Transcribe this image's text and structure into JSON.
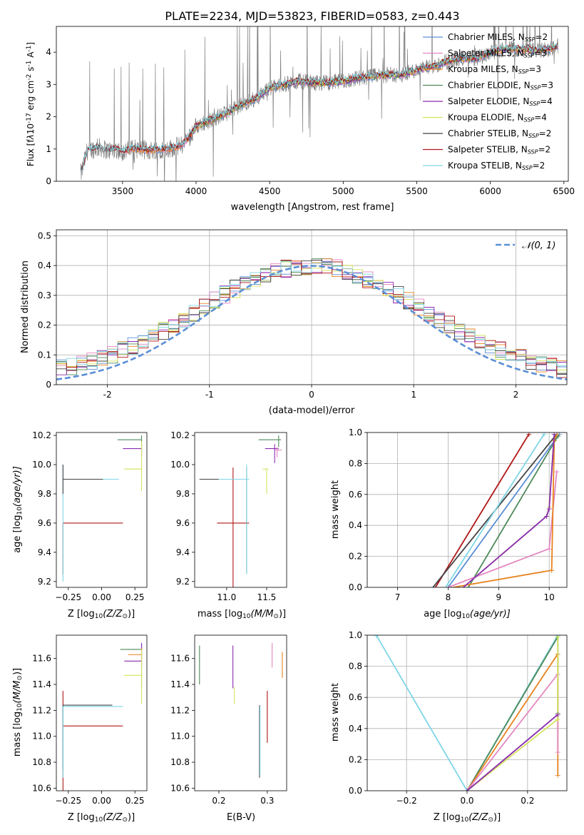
{
  "figure": {
    "suptitle": "PLATE=2234, MJD=53823, FIBERID=0583, z=0.443"
  },
  "colors": {
    "chabrier_miles": "#5b8fd6",
    "salpeter_miles": "#e487c0",
    "kroupa_miles": "#e8821e",
    "chabrier_elodie": "#4f8a5a",
    "salpeter_elodie": "#8a2ab0",
    "kroupa_elodie": "#d4e35a",
    "chabrier_stelib": "#444444",
    "salpeter_stelib": "#b01616",
    "kroupa_stelib": "#7fd6e6",
    "observed": "#808080",
    "normal_curve": "#5b8fd6"
  },
  "chart_data": [
    {
      "id": "spectrum",
      "type": "line",
      "title": "PLATE=2234, MJD=53823, FIBERID=0583, z=0.443",
      "xlabel": "wavelength [Angstrom, rest frame]",
      "ylabel_parts": [
        "Flux [f",
        "λ",
        "10",
        "-17",
        " erg cm",
        "-2",
        " s",
        "-1",
        " A",
        "-1",
        "]"
      ],
      "xlim": [
        3050,
        6530
      ],
      "ylim": [
        0,
        4.8
      ],
      "xticks": [
        3500,
        4000,
        4500,
        5000,
        5500,
        6000,
        6500
      ],
      "yticks": [
        0,
        1,
        2,
        3,
        4
      ],
      "model_continuum": {
        "x": [
          3220,
          3260,
          3300,
          3350,
          3400,
          3450,
          3500,
          3560,
          3620,
          3680,
          3740,
          3800,
          3850,
          3900,
          3950,
          4000,
          4100,
          4200,
          4300,
          4400,
          4500,
          4600,
          4700,
          4800,
          4900,
          5000,
          5100,
          5200,
          5300,
          5400,
          5500,
          5600,
          5700,
          5800,
          5900,
          6000,
          6100,
          6200,
          6300,
          6400,
          6460
        ],
        "y": [
          0.25,
          0.95,
          1.0,
          1.05,
          0.95,
          1.0,
          0.92,
          1.0,
          1.0,
          0.95,
          1.0,
          1.0,
          1.05,
          1.12,
          1.35,
          1.7,
          1.9,
          2.1,
          2.35,
          2.55,
          2.9,
          3.0,
          3.1,
          3.05,
          3.05,
          3.1,
          3.2,
          3.25,
          3.3,
          3.3,
          3.45,
          3.55,
          3.7,
          3.8,
          3.8,
          4.0,
          4.1,
          4.1,
          4.05,
          4.1,
          4.2
        ]
      },
      "legend": {
        "position": "upper right",
        "entries": [
          {
            "label": "Chabrier MILES, N",
            "sub": "SSP",
            "suffix": "=2",
            "color_key": "chabrier_miles"
          },
          {
            "label": "Salpeter MILES, N",
            "sub": "SSP",
            "suffix": "=3",
            "color_key": "salpeter_miles"
          },
          {
            "label": "Kroupa MILES, N",
            "sub": "SSP",
            "suffix": "=3",
            "color_key": "kroupa_miles"
          },
          {
            "label": "Chabrier ELODIE, N",
            "sub": "SSP",
            "suffix": "=3",
            "color_key": "chabrier_elodie"
          },
          {
            "label": "Salpeter ELODIE, N",
            "sub": "SSP",
            "suffix": "=4",
            "color_key": "salpeter_elodie"
          },
          {
            "label": "Kroupa ELODIE, N",
            "sub": "SSP",
            "suffix": "=4",
            "color_key": "kroupa_elodie"
          },
          {
            "label": "Chabrier STELIB, N",
            "sub": "SSP",
            "suffix": "=2",
            "color_key": "chabrier_stelib"
          },
          {
            "label": "Salpeter STELIB, N",
            "sub": "SSP",
            "suffix": "=2",
            "color_key": "salpeter_stelib"
          },
          {
            "label": "Kroupa STELIB, N",
            "sub": "SSP",
            "suffix": "=2",
            "color_key": "kroupa_stelib"
          }
        ]
      }
    },
    {
      "id": "residuals",
      "type": "histogram",
      "xlabel": "(data-model)/error",
      "ylabel": "Normed distribution",
      "xlim": [
        -2.5,
        2.5
      ],
      "ylim": [
        0,
        0.52
      ],
      "xticks": [
        -2,
        -1,
        0,
        1,
        2
      ],
      "yticks": [
        0.0,
        0.1,
        0.2,
        0.3,
        0.4,
        0.5
      ],
      "grid": true,
      "bin_width": 0.1,
      "legend": {
        "position": "upper right",
        "label": "𝒩(0, 1)"
      },
      "normal_curve": {
        "mean": 0,
        "sigma": 1
      }
    },
    {
      "id": "age_vs_Z",
      "type": "scatter",
      "xlabel": "Z [log10(Z/Z⊙)]",
      "xlabel_parts": [
        "Z [log",
        "10",
        "(Z/Z",
        "⊙",
        ")]"
      ],
      "ylabel_parts": [
        "age  [log",
        "10",
        "(age/yr)]"
      ],
      "xlim": [
        -0.34,
        0.34
      ],
      "ylim": [
        9.16,
        10.22
      ],
      "xticks": [
        -0.25,
        0.0,
        0.25
      ],
      "xtick_labels": [
        "−0.25",
        "0.00",
        "0.25"
      ],
      "yticks": [
        9.2,
        9.4,
        9.6,
        9.8,
        10.0,
        10.2
      ],
      "yticks_labels": [
        "9.2",
        "9.4",
        "9.6",
        "9.8",
        "10.0",
        "10.2"
      ]
    },
    {
      "id": "age_vs_mass",
      "type": "scatter",
      "xlabel_parts": [
        "mass [log",
        "10",
        "(M/M",
        "⊙",
        ")]"
      ],
      "xlim": [
        10.6,
        11.75
      ],
      "ylim": [
        9.16,
        10.22
      ],
      "xticks": [
        11.0,
        11.5
      ],
      "xtick_labels": [
        "11.0",
        "11.5"
      ],
      "yticks": [
        9.2,
        9.4,
        9.6,
        9.8,
        10.0,
        10.2
      ],
      "yticks_labels": [
        "9.2",
        "9.4",
        "9.6",
        "9.8",
        "10.0",
        "10.2"
      ]
    },
    {
      "id": "cumulative_age",
      "type": "line",
      "xlabel_parts": [
        "age  [log",
        "10",
        "(age/yr)]"
      ],
      "ylabel": "mass weight",
      "xlim": [
        6.4,
        10.35
      ],
      "ylim": [
        0,
        1.0
      ],
      "xticks": [
        7,
        8,
        9,
        10
      ],
      "xtick_labels": [
        "7",
        "8",
        "9",
        "10"
      ],
      "yticks": [
        0.0,
        0.2,
        0.4,
        0.6,
        0.8,
        1.0
      ],
      "yticks_labels": [
        "0.0",
        "0.2",
        "0.4",
        "0.6",
        "0.8",
        "1.0"
      ],
      "grid": true,
      "series": [
        {
          "color_key": "salpeter_stelib",
          "x": [
            7.75,
            9.6
          ],
          "y": [
            0.0,
            0.99
          ]
        },
        {
          "color_key": "chabrier_stelib",
          "x": [
            7.7,
            10.15
          ],
          "y": [
            0.0,
            0.99
          ]
        },
        {
          "color_key": "kroupa_stelib",
          "x": [
            7.95,
            9.9
          ],
          "y": [
            0.0,
            0.99
          ]
        },
        {
          "color_key": "chabrier_miles",
          "x": [
            8.0,
            10.2
          ],
          "y": [
            0.0,
            0.99
          ]
        },
        {
          "color_key": "chabrier_elodie",
          "x": [
            8.4,
            10.18
          ],
          "y": [
            0.0,
            0.98
          ]
        },
        {
          "color_key": "salpeter_miles",
          "x": [
            8.0,
            10.0,
            10.15
          ],
          "y": [
            0.0,
            0.25,
            0.75
          ]
        },
        {
          "color_key": "kroupa_miles",
          "x": [
            8.1,
            10.05,
            10.1,
            10.15
          ],
          "y": [
            0.0,
            0.11,
            0.95,
            0.99
          ]
        },
        {
          "color_key": "kroupa_elodie",
          "x": [
            8.3,
            9.95,
            10.0,
            10.1
          ],
          "y": [
            0.0,
            0.46,
            0.52,
            0.99
          ]
        },
        {
          "color_key": "salpeter_elodie",
          "x": [
            8.3,
            9.95,
            10.0,
            10.1
          ],
          "y": [
            0.0,
            0.46,
            0.51,
            0.99
          ]
        }
      ]
    },
    {
      "id": "mass_vs_Z",
      "type": "scatter",
      "xlabel_parts": [
        "Z [log",
        "10",
        "(Z/Z",
        "⊙",
        ")]"
      ],
      "ylabel_parts": [
        "mass [log",
        "10",
        "(M/M",
        "⊙",
        ")]"
      ],
      "xlim": [
        -0.34,
        0.34
      ],
      "ylim": [
        10.58,
        11.78
      ],
      "xticks": [
        -0.25,
        0.0,
        0.25
      ],
      "xtick_labels": [
        "−0.25",
        "0.00",
        "0.25"
      ],
      "yticks": [
        10.6,
        10.8,
        11.0,
        11.2,
        11.4,
        11.6
      ],
      "yticks_labels": [
        "10.6",
        "10.8",
        "11.0",
        "11.2",
        "11.4",
        "11.6"
      ]
    },
    {
      "id": "mass_vs_ebv",
      "type": "scatter",
      "xlabel": "E(B-V)",
      "xlim": [
        0.15,
        0.34
      ],
      "ylim": [
        10.58,
        11.78
      ],
      "xticks": [
        0.2,
        0.3
      ],
      "xtick_labels": [
        "0.2",
        "0.3"
      ],
      "yticks": [
        10.6,
        10.8,
        11.0,
        11.2,
        11.4,
        11.6
      ],
      "yticks_labels": [
        "10.6",
        "10.8",
        "11.0",
        "11.2",
        "11.4",
        "11.6"
      ]
    },
    {
      "id": "cumulative_Z",
      "type": "line",
      "xlabel_parts": [
        "Z [log",
        "10",
        "(Z/Z",
        "⊙",
        ")]"
      ],
      "ylabel": "mass weight",
      "xlim": [
        -0.33,
        0.33
      ],
      "ylim": [
        0,
        1.0
      ],
      "xticks": [
        -0.2,
        0.0,
        0.2
      ],
      "xtick_labels": [
        "−0.2",
        "0.0",
        "0.2"
      ],
      "yticks": [
        0.0,
        0.2,
        0.4,
        0.6,
        0.8,
        1.0
      ],
      "yticks_labels": [
        "0.0",
        "0.2",
        "0.4",
        "0.6",
        "0.8",
        "1.0"
      ],
      "grid": true,
      "series": [
        {
          "color_key": "kroupa_stelib",
          "x": [
            -0.3,
            0.0,
            0.3
          ],
          "y": [
            1.0,
            0.0,
            1.0
          ]
        },
        {
          "color_key": "chabrier_elodie",
          "x": [
            0.0,
            0.3,
            0.3
          ],
          "y": [
            0.0,
            0.99,
            0.5
          ]
        },
        {
          "color_key": "kroupa_miles",
          "x": [
            0.0,
            0.3,
            0.3
          ],
          "y": [
            0.0,
            0.88,
            0.1
          ]
        },
        {
          "color_key": "salpeter_miles",
          "x": [
            0.0,
            0.3,
            0.3
          ],
          "y": [
            0.0,
            0.75,
            0.25
          ]
        },
        {
          "color_key": "kroupa_elodie",
          "x": [
            0.0,
            0.3,
            0.3
          ],
          "y": [
            0.0,
            0.46,
            0.99
          ]
        },
        {
          "color_key": "salpeter_elodie",
          "x": [
            0.0,
            0.3
          ],
          "y": [
            0.0,
            0.49
          ]
        }
      ]
    }
  ]
}
